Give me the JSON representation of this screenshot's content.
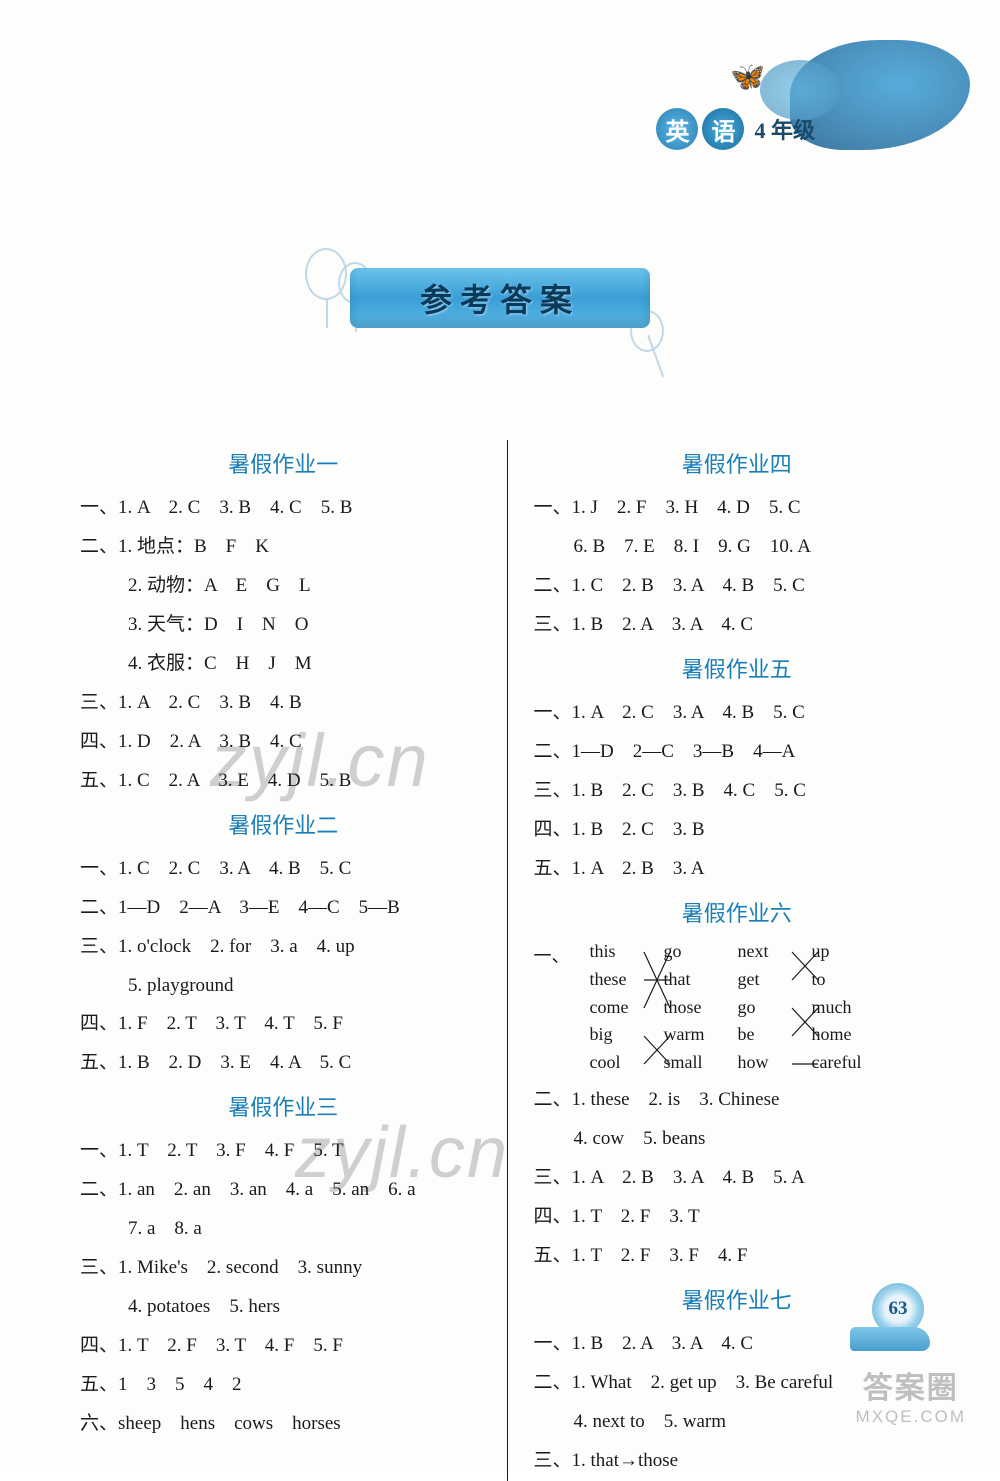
{
  "header": {
    "subject_char1": "英",
    "subject_char2": "语",
    "grade": "4 年级"
  },
  "title": "参考答案",
  "left": {
    "s1": {
      "title": "暑假作业一",
      "l1": "一、1. A　2. C　3. B　4. C　5. B",
      "l2": "二、1. 地点：B　F　K",
      "l3": "2. 动物：A　E　G　L",
      "l4": "3. 天气：D　I　N　O",
      "l5": "4. 衣服：C　H　J　M",
      "l6": "三、1. A　2. C　3. B　4. B",
      "l7": "四、1. D　2. A　3. B　4. C",
      "l8": "五、1. C　2. A　3. E　4. D　5. B"
    },
    "s2": {
      "title": "暑假作业二",
      "l1": "一、1. C　2. C　3. A　4. B　5. C",
      "l2": "二、1—D　2—A　3—E　4—C　5—B",
      "l3": "三、1. o'clock　2. for　3. a　4. up",
      "l4": "5. playground",
      "l5": "四、1. F　2. T　3. T　4. T　5. F",
      "l6": "五、1. B　2. D　3. E　4. A　5. C"
    },
    "s3": {
      "title": "暑假作业三",
      "l1": "一、1. T　2. T　3. F　4. F　5. T",
      "l2": "二、1. an　2. an　3. an　4. a　5. an　6. a",
      "l3": "7. a　8. a",
      "l4": "三、1. Mike's　2. second　3. sunny",
      "l5": "4. potatoes　5. hers",
      "l6": "四、1. T　2. F　3. T　4. F　5. F",
      "l7": "五、1　3　5　4　2",
      "l8": "六、sheep　hens　cows　horses"
    }
  },
  "right": {
    "s4": {
      "title": "暑假作业四",
      "l1": "一、1. J　2. F　3. H　4. D　5. C",
      "l2": "6. B　7. E　8. I　9. G　10. A",
      "l3": "二、1. C　2. B　3. A　4. B　5. C",
      "l4": "三、1. B　2. A　3. A　4. C"
    },
    "s5": {
      "title": "暑假作业五",
      "l1": "一、1. A　2. C　3. A　4. B　5. C",
      "l2": "二、1—D　2—C　3—B　4—A",
      "l3": "三、1. B　2. C　3. B　4. C　5. C",
      "l4": "四、1. B　2. C　3. B",
      "l5": "五、1. A　2. B　3. A"
    },
    "s6": {
      "title": "暑假作业六",
      "prefix": "一、",
      "mcol1": [
        "this",
        "these",
        "come",
        "big",
        "cool"
      ],
      "mcol2": [
        "go",
        "that",
        "those",
        "warm",
        "small"
      ],
      "mcol3": [
        "next",
        "get",
        "go",
        "be",
        "how"
      ],
      "mcol4": [
        "up",
        "to",
        "much",
        "home",
        "careful"
      ],
      "edges1": [
        [
          0,
          2
        ],
        [
          1,
          1
        ],
        [
          2,
          0
        ],
        [
          3,
          4
        ],
        [
          4,
          3
        ]
      ],
      "edges2": [
        [
          0,
          1
        ],
        [
          1,
          0
        ],
        [
          2,
          3
        ],
        [
          3,
          2
        ],
        [
          4,
          4
        ]
      ],
      "l2": "二、1. these　2. is　3. Chinese",
      "l3": "4. cow　5. beans",
      "l4": "三、1. A　2. B　3. A　4. B　5. A",
      "l5": "四、1. T　2. F　3. T",
      "l6": "五、1. T　2. F　3. F　4. F"
    },
    "s7": {
      "title": "暑假作业七",
      "l1": "一、1. B　2. A　3. A　4. C",
      "l2": "二、1. What　2. get up　3. Be careful",
      "l3": "4. next to　5. warm",
      "l4": "三、1. that→those"
    }
  },
  "pageNumber": "63",
  "watermark": {
    "text": "zyjl.cn",
    "logo_cn": "答案圈",
    "logo_en": "MXQE.COM"
  },
  "colors": {
    "accent": "#1a7fb8",
    "text": "#1a1a1a",
    "banner_bg": "#3a9ed6",
    "flower": "#2d7fb3"
  }
}
